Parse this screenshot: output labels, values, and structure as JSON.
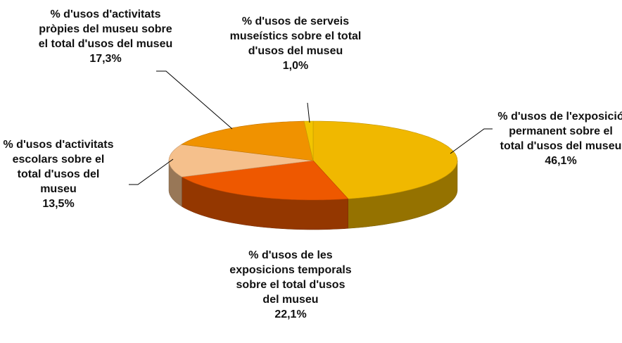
{
  "chart_data": {
    "type": "pie3d",
    "categories": [
      "% d'usos de l'exposició permanent sobre el total d'usos del museu",
      "% d'usos de les exposicions temporals sobre el total d'usos del museu",
      "% d'usos d'activitats escolars sobre el total d'usos del museu",
      "% d'usos d'activitats pròpies del museu sobre el total d'usos del museu",
      "% d'usos de serveis museístics sobre el total d'usos del museu"
    ],
    "values": [
      46.1,
      22.1,
      13.5,
      17.3,
      1.0
    ],
    "value_labels": [
      "46,1%",
      "22,1%",
      "13,5%",
      "17,3%",
      "1,0%"
    ],
    "colors": [
      "#f0b800",
      "#ee5800",
      "#f5c08c",
      "#f09200",
      "#f2c400"
    ]
  }
}
